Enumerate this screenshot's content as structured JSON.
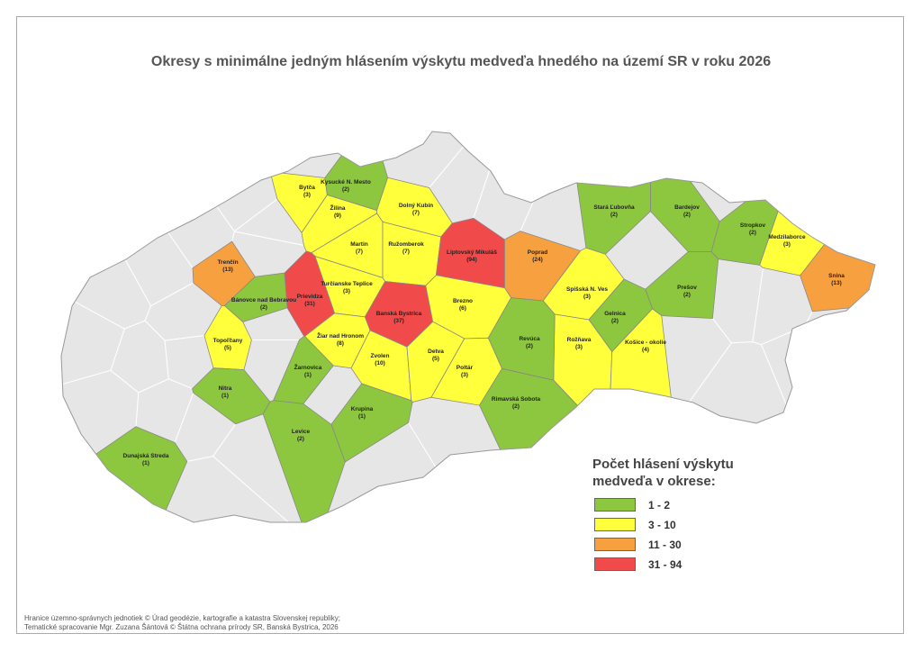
{
  "title": "Okresy s minimálne jedným hlásením výskytu medveďa hnedého na území SR v roku 2026",
  "districts": {
    "names": [
      "Bytča",
      "Kysucké N. Mesto",
      "Žilina",
      "Dolný Kubín",
      "Martin",
      "Ružomberok",
      "Liptovský Mikuláš",
      "Poprad",
      "Stará Ľubovňa",
      "Bardejov",
      "Stropkov",
      "Medzilaborce",
      "Snina",
      "Trenčín",
      "Prievidza",
      "Bánovce nad Bebravou",
      "Turčianske Teplice",
      "Banská Bystrica",
      "Brezno",
      "Spišská N. Ves",
      "Prešov",
      "Gelnica",
      "Topoľčany",
      "Žiar nad Hronom",
      "Rožňava",
      "Košice - okolie",
      "Revúca",
      "Žarnovica",
      "Zvolen",
      "Detva",
      "Poltár",
      "Nitra",
      "Krupina",
      "Levice",
      "Rimavská Sobota",
      "Dunajská Streda"
    ],
    "values": [
      3,
      2,
      9,
      7,
      7,
      7,
      94,
      24,
      2,
      2,
      2,
      3,
      13,
      13,
      31,
      2,
      3,
      37,
      6,
      3,
      2,
      2,
      5,
      8,
      3,
      4,
      2,
      1,
      10,
      5,
      3,
      1,
      1,
      2,
      2,
      1
    ],
    "value_labels": [
      "(3)",
      "(2)",
      "(9)",
      "(7)",
      "(7)",
      "(7)",
      "(94)",
      "(24)",
      "(2)",
      "(2)",
      "(2)",
      "(3)",
      "(13)",
      "(13)",
      "(31)",
      "(2)",
      "(3)",
      "(37)",
      "(6)",
      "(3)",
      "(2)",
      "(2)",
      "(5)",
      "(8)",
      "(3)",
      "(4)",
      "(2)",
      "(1)",
      "(10)",
      "(5)",
      "(3)",
      "(1)",
      "(1)",
      "(2)",
      "(2)",
      "(1)"
    ]
  },
  "legend": {
    "title": "Počet hlásení výskytu medveďa v okrese:",
    "classes": [
      {
        "label": "1 - 2",
        "range": [
          1,
          2
        ],
        "color": "#8dc63f"
      },
      {
        "label": "3 - 10",
        "range": [
          3,
          10
        ],
        "color": "#ffff3c"
      },
      {
        "label": "11 - 30",
        "range": [
          11,
          30
        ],
        "color": "#f7a040"
      },
      {
        "label": "31 - 94",
        "range": [
          31,
          94
        ],
        "color": "#f04a4a"
      }
    ]
  },
  "footer": [
    "Hranice územno-správnych jednotiek © Úrad geodézie, kartografie a katastra Slovenskej republiky;",
    "Tematické spracovanie Mgr. Zuzana Šántová © Štátna ochrana prírody SR, Banská Bystrica, 2026"
  ]
}
